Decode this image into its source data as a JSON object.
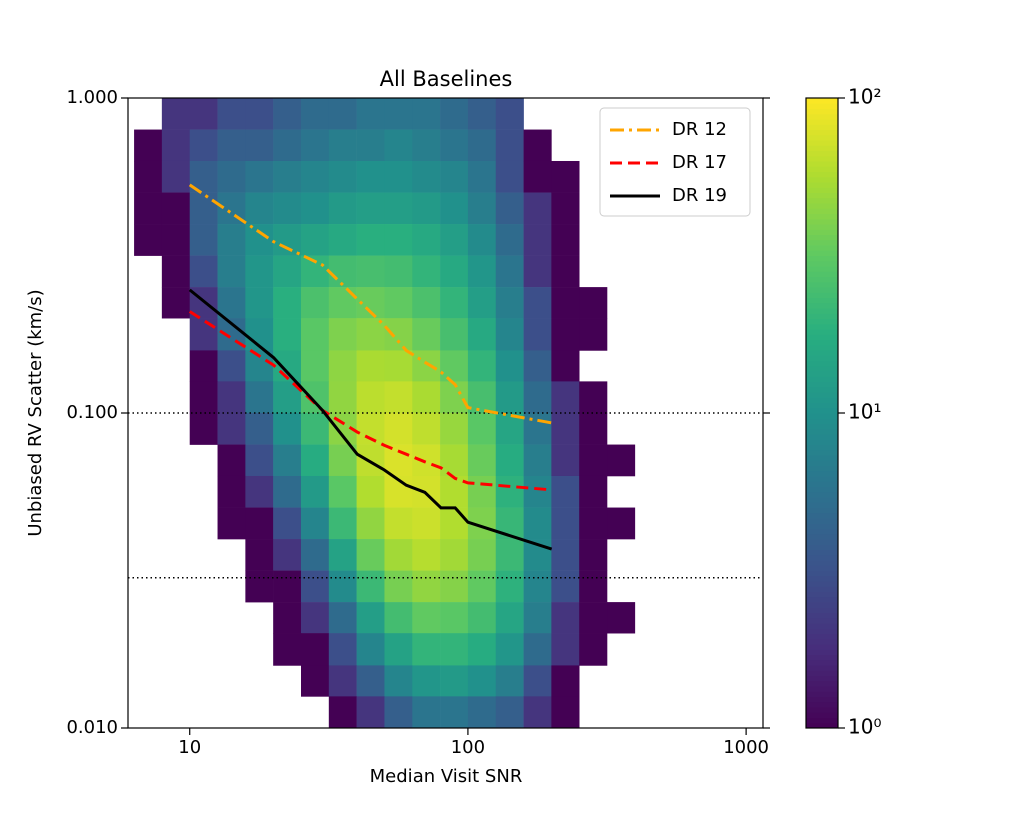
{
  "chart_data": {
    "type": "histogram2d",
    "title": "All Baselines",
    "xlabel": "Median Visit SNR",
    "ylabel": "Unbiased RV Scatter (km/s)",
    "xscale": "log",
    "yscale": "log",
    "xlim": [
      6,
      1150
    ],
    "ylim": [
      0.01,
      1.0
    ],
    "xticks": [
      10,
      100,
      1000
    ],
    "yticks": [
      {
        "value": 0.01,
        "label": "0.010"
      },
      {
        "value": 0.1,
        "label": "0.100"
      },
      {
        "value": 1.0,
        "label": "1.000"
      }
    ],
    "hlines": [
      0.1,
      0.03
    ],
    "histogram": {
      "xbins": [
        6.31,
        7.94,
        10,
        12.59,
        15.85,
        19.95,
        25.12,
        31.62,
        39.81,
        50.12,
        63.1,
        79.43,
        100,
        125.9,
        158.5,
        199.5,
        251.2,
        316.2,
        398.1
      ],
      "ybins": [
        1.0,
        0.794,
        0.631,
        0.501,
        0.398,
        0.316,
        0.251,
        0.2,
        0.158,
        0.126,
        0.1,
        0.0794,
        0.0631,
        0.0501,
        0.0398,
        0.0316,
        0.0251,
        0.02,
        0.0158,
        0.0126,
        0.01
      ],
      "counts": [
        [
          0,
          2,
          2,
          3,
          3,
          4,
          5,
          5,
          6,
          6,
          6,
          5,
          4,
          3,
          0,
          0,
          0,
          0
        ],
        [
          1,
          2,
          3,
          4,
          4,
          5,
          6,
          7,
          7,
          8,
          7,
          6,
          5,
          3,
          1,
          0,
          0,
          0
        ],
        [
          1,
          2,
          4,
          5,
          6,
          7,
          8,
          9,
          10,
          10,
          9,
          8,
          6,
          3,
          1,
          1,
          0,
          0
        ],
        [
          1,
          1,
          4,
          6,
          8,
          9,
          10,
          12,
          13,
          13,
          12,
          10,
          7,
          4,
          2,
          1,
          0,
          0
        ],
        [
          1,
          1,
          4,
          7,
          10,
          12,
          14,
          16,
          18,
          18,
          16,
          13,
          9,
          5,
          2,
          1,
          0,
          0
        ],
        [
          0,
          1,
          3,
          7,
          11,
          15,
          20,
          24,
          25,
          24,
          20,
          16,
          11,
          6,
          2,
          1,
          0,
          0
        ],
        [
          0,
          1,
          2,
          6,
          11,
          18,
          26,
          32,
          34,
          32,
          26,
          20,
          13,
          7,
          3,
          1,
          1,
          0
        ],
        [
          0,
          0,
          2,
          5,
          10,
          18,
          30,
          40,
          44,
          42,
          34,
          25,
          16,
          8,
          3,
          1,
          1,
          0
        ],
        [
          0,
          0,
          1,
          3,
          8,
          16,
          30,
          45,
          55,
          54,
          44,
          32,
          20,
          10,
          4,
          1,
          0,
          0
        ],
        [
          0,
          0,
          1,
          2,
          6,
          13,
          27,
          46,
          62,
          66,
          55,
          40,
          25,
          12,
          5,
          2,
          1,
          0
        ],
        [
          0,
          0,
          1,
          2,
          4,
          10,
          22,
          44,
          66,
          74,
          64,
          48,
          30,
          15,
          6,
          2,
          1,
          0
        ],
        [
          0,
          0,
          0,
          1,
          3,
          7,
          17,
          38,
          64,
          78,
          72,
          54,
          34,
          17,
          7,
          2,
          1,
          1
        ],
        [
          0,
          0,
          0,
          1,
          2,
          5,
          12,
          30,
          58,
          76,
          74,
          58,
          38,
          19,
          8,
          3,
          1,
          0
        ],
        [
          0,
          0,
          0,
          1,
          1,
          3,
          8,
          22,
          46,
          66,
          70,
          58,
          40,
          21,
          9,
          3,
          1,
          1
        ],
        [
          0,
          0,
          0,
          0,
          1,
          2,
          5,
          14,
          34,
          52,
          60,
          52,
          38,
          22,
          9,
          3,
          1,
          0
        ],
        [
          0,
          0,
          0,
          0,
          1,
          1,
          3,
          9,
          22,
          38,
          46,
          42,
          32,
          19,
          8,
          3,
          1,
          0
        ],
        [
          0,
          0,
          0,
          0,
          0,
          1,
          2,
          5,
          13,
          24,
          32,
          30,
          24,
          15,
          7,
          2,
          1,
          1
        ],
        [
          0,
          0,
          0,
          0,
          0,
          1,
          1,
          3,
          8,
          14,
          20,
          20,
          17,
          11,
          5,
          2,
          1,
          0
        ],
        [
          0,
          0,
          0,
          0,
          0,
          0,
          1,
          2,
          4,
          8,
          11,
          12,
          10,
          7,
          3,
          1,
          0,
          0
        ],
        [
          0,
          0,
          0,
          0,
          0,
          0,
          0,
          1,
          2,
          4,
          6,
          6,
          5,
          4,
          2,
          1,
          0,
          0
        ]
      ]
    },
    "colorbar": {
      "clim": [
        1,
        100
      ],
      "scale": "log",
      "colormap": "viridis",
      "ticks": [
        {
          "value": 1,
          "label": "10⁰"
        },
        {
          "value": 10,
          "label": "10¹"
        },
        {
          "value": 100,
          "label": "10²"
        }
      ]
    },
    "legend": "upper right",
    "series": [
      {
        "name": "DR 12",
        "color": "#ffa500",
        "linestyle": "dashdot",
        "x": [
          10,
          20,
          30,
          40,
          50,
          60,
          70,
          80,
          90,
          100,
          200
        ],
        "values": [
          0.53,
          0.35,
          0.295,
          0.23,
          0.19,
          0.158,
          0.145,
          0.135,
          0.123,
          0.104,
          0.093
        ]
      },
      {
        "name": "DR 17",
        "color": "#ff0000",
        "linestyle": "dashed",
        "x": [
          10,
          20,
          30,
          40,
          50,
          60,
          70,
          80,
          90,
          100,
          200
        ],
        "values": [
          0.21,
          0.142,
          0.102,
          0.087,
          0.079,
          0.074,
          0.07,
          0.067,
          0.062,
          0.06,
          0.057
        ]
      },
      {
        "name": "DR 19",
        "color": "#000000",
        "linestyle": "solid",
        "x": [
          10,
          20,
          30,
          40,
          50,
          60,
          70,
          80,
          90,
          100,
          200
        ],
        "values": [
          0.246,
          0.15,
          0.102,
          0.074,
          0.066,
          0.059,
          0.056,
          0.05,
          0.05,
          0.045,
          0.037
        ]
      }
    ]
  }
}
